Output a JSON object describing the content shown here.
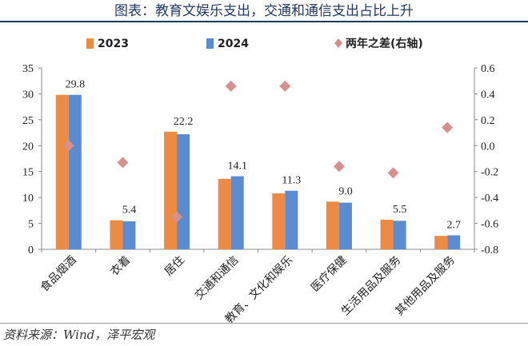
{
  "title": "图表：教育文娱乐支出，交通和通信支出占比上升",
  "source": "资料来源：Wind，泽平宏观",
  "chart_data": {
    "type": "bar",
    "categories": [
      "食品烟酒",
      "衣着",
      "居住",
      "交通和通信",
      "教育、文化和娱乐",
      "医疗保健",
      "生活用品及服务",
      "其他用品及服务"
    ],
    "series": [
      {
        "name": "2023",
        "type": "bar",
        "axis": "left",
        "color": "#ED8A43",
        "values": [
          29.8,
          5.6,
          22.7,
          13.6,
          10.8,
          9.2,
          5.7,
          2.6
        ]
      },
      {
        "name": "2024",
        "type": "bar",
        "axis": "left",
        "color": "#5B8BD0",
        "values": [
          29.8,
          5.4,
          22.2,
          14.1,
          11.3,
          9.0,
          5.5,
          2.7
        ]
      },
      {
        "name": "两年之差(右轴)",
        "type": "scatter",
        "axis": "right",
        "marker": "diamond",
        "color": "#D4918F",
        "values": [
          0.0,
          -0.13,
          -0.55,
          0.46,
          0.46,
          -0.16,
          -0.21,
          0.14
        ]
      }
    ],
    "data_labels": {
      "series": "2024",
      "values": [
        "29.8",
        "5.4",
        "22.2",
        "14.1",
        "11.3",
        "9.0",
        "5.5",
        "2.7"
      ]
    },
    "left_axis": {
      "min": 0,
      "max": 35,
      "ticks": [
        "0",
        "5",
        "10",
        "15",
        "20",
        "25",
        "30",
        "35"
      ]
    },
    "right_axis": {
      "min": -0.8,
      "max": 0.6,
      "ticks": [
        "-0.8",
        "-0.6",
        "-0.4",
        "-0.2",
        "0.0",
        "0.2",
        "0.4",
        "0.6"
      ]
    },
    "grid": false,
    "legend_position": "top"
  }
}
